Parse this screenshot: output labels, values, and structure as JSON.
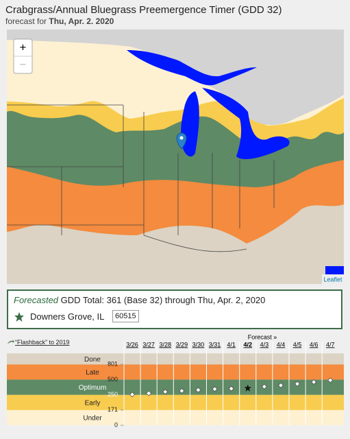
{
  "header": {
    "title": "Crabgrass/Annual Bluegrass Preemergence Timer (GDD 32)",
    "subtitle_prefix": "forecast for",
    "subtitle_date": "Thu, Apr. 2. 2020"
  },
  "map": {
    "zoom_in": "+",
    "zoom_out": "−",
    "attribution": "Leaflet"
  },
  "info": {
    "label_italic": "Forecasted",
    "text": "GDD Total: 361 (Base 32) through Thu, Apr. 2, 2020",
    "location": "Downers Grove, IL",
    "zip": "60515"
  },
  "chart_data": {
    "type": "dot",
    "flashback_link": "“Flashback” to 2019",
    "forecast_label": "Forecast »",
    "categories": [
      "3/26",
      "3/27",
      "3/28",
      "3/29",
      "3/30",
      "3/31",
      "4/1",
      "4/2",
      "4/3",
      "4/4",
      "4/5",
      "4/6",
      "4/7"
    ],
    "values": [
      255,
      275,
      300,
      315,
      330,
      345,
      352,
      361,
      385,
      405,
      430,
      460,
      490
    ],
    "current_index": 7,
    "yticks": [
      0,
      171,
      250,
      500,
      801
    ],
    "bands": [
      {
        "name": "Under",
        "color": "#fdf1d2"
      },
      {
        "name": "Early",
        "color": "#f8cc4e"
      },
      {
        "name": "Optimum",
        "color": "#5e8a66"
      },
      {
        "name": "Late",
        "color": "#f48b3e"
      },
      {
        "name": "Done",
        "color": "#dcd3c4"
      }
    ]
  }
}
